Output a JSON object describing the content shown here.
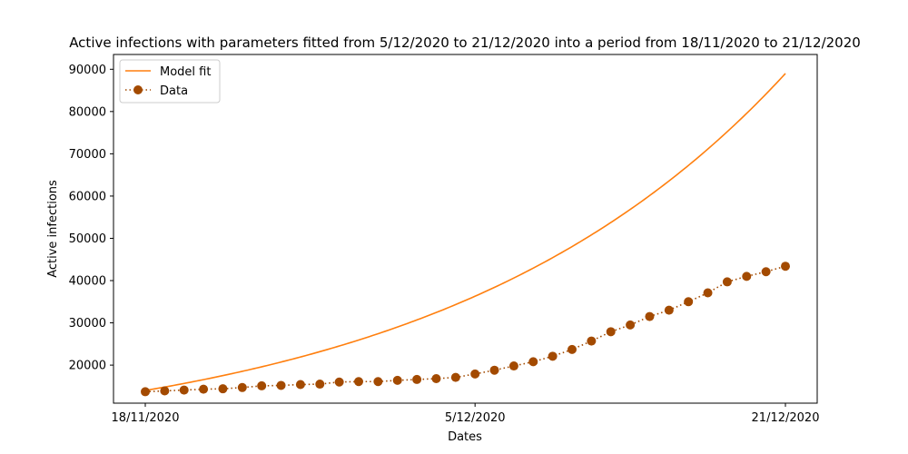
{
  "chart_data": {
    "type": "line",
    "title": "Active infections with parameters fitted from 5/12/2020 to 21/12/2020 into a period from 18/11/2020 to 21/12/2020",
    "xlabel": "Dates",
    "ylabel": "Active infections",
    "x_tick_labels": [
      "18/11/2020",
      "5/12/2020",
      "21/12/2020"
    ],
    "x_tick_days": [
      0,
      17,
      33
    ],
    "ylim": [
      11000,
      93500
    ],
    "y_ticks": [
      20000,
      30000,
      40000,
      50000,
      60000,
      70000,
      80000,
      90000
    ],
    "grid": false,
    "legend_position": "top-left",
    "colors": {
      "model": "#ff7f0e",
      "data": "#a34a00"
    },
    "series": [
      {
        "name": "Model fit",
        "style": "solid-line",
        "model": {
          "start": 14000,
          "end": 89000,
          "days": 33
        }
      },
      {
        "name": "Data",
        "style": "dotted-line-with-markers",
        "values": [
          13700,
          13900,
          14100,
          14300,
          14400,
          14700,
          15100,
          15200,
          15400,
          15500,
          16000,
          16100,
          16100,
          16400,
          16600,
          16800,
          17100,
          17900,
          18800,
          19800,
          20800,
          22100,
          23700,
          25700,
          27900,
          29500,
          31500,
          33000,
          35000,
          37100,
          39700,
          41000,
          42100,
          43400
        ]
      }
    ]
  }
}
